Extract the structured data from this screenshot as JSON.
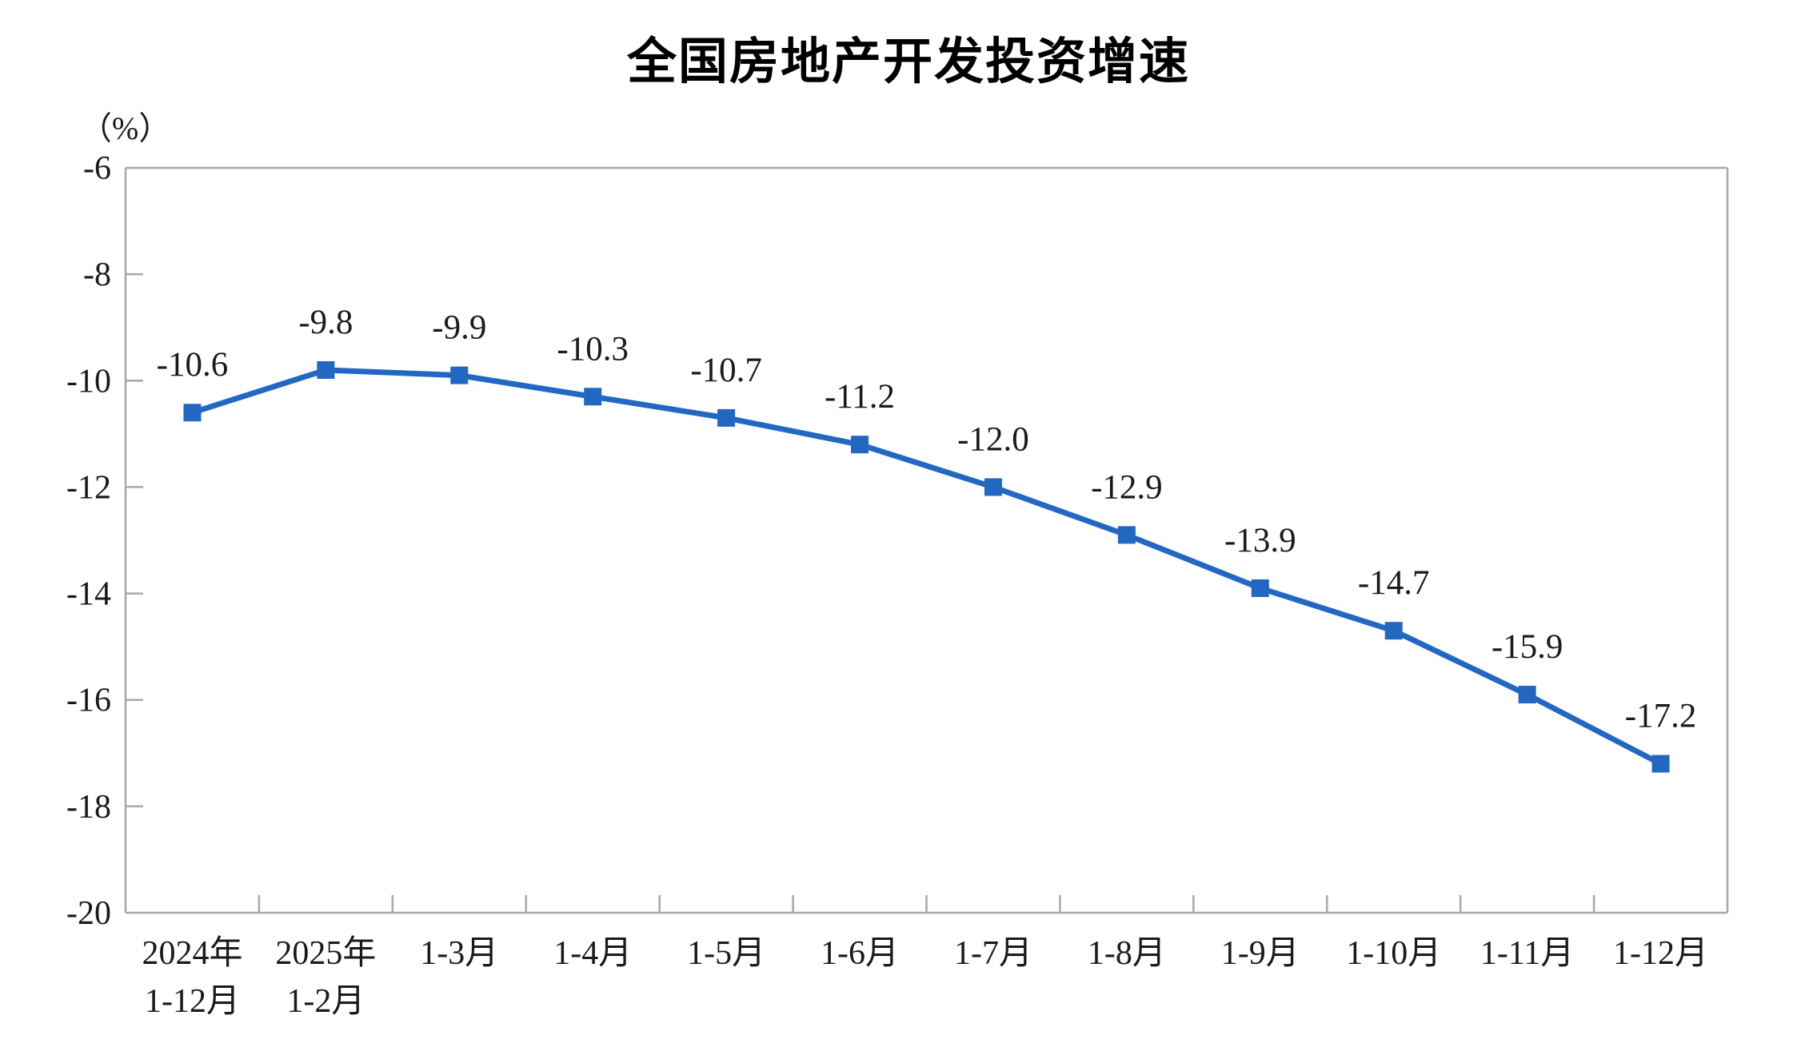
{
  "chart": {
    "title": "全国房地产开发投资增速",
    "unit_label": "（%）"
  },
  "chart_data": {
    "type": "line",
    "title": "全国房地产开发投资增速",
    "xlabel": "",
    "ylabel": "（%）",
    "categories": [
      "2024年1-12月",
      "2025年1-2月",
      "1-3月",
      "1-4月",
      "1-5月",
      "1-6月",
      "1-7月",
      "1-8月",
      "1-9月",
      "1-10月",
      "1-11月",
      "1-12月"
    ],
    "x_tick_lines": [
      [
        "2024年",
        "1-12月"
      ],
      [
        "2025年",
        "1-2月"
      ],
      [
        "1-3月"
      ],
      [
        "1-4月"
      ],
      [
        "1-5月"
      ],
      [
        "1-6月"
      ],
      [
        "1-7月"
      ],
      [
        "1-8月"
      ],
      [
        "1-9月"
      ],
      [
        "1-10月"
      ],
      [
        "1-11月"
      ],
      [
        "1-12月"
      ]
    ],
    "values": [
      -10.6,
      -9.8,
      -9.9,
      -10.3,
      -10.7,
      -11.2,
      -12.0,
      -12.9,
      -13.9,
      -14.7,
      -15.9,
      -17.2
    ],
    "data_labels": [
      "-10.6",
      "-9.8",
      "-9.9",
      "-10.3",
      "-10.7",
      "-11.2",
      "-12.0",
      "-12.9",
      "-13.9",
      "-14.7",
      "-15.9",
      "-17.2"
    ],
    "yticks": [
      -6,
      -8,
      -10,
      -12,
      -14,
      -16,
      -18,
      -20
    ],
    "ytick_labels": [
      "-6",
      "-8",
      "-10",
      "-12",
      "-14",
      "-16",
      "-18",
      "-20"
    ],
    "ylim": [
      -20,
      -6
    ],
    "grid": false,
    "legend": "none",
    "marker": "square",
    "colors": {
      "line": "#2268c2",
      "marker": "#2268c2",
      "axis": "#a8a8a8",
      "tick_label": "#1a1a1a",
      "data_label": "#1a1a1a",
      "title": "#000000"
    }
  }
}
